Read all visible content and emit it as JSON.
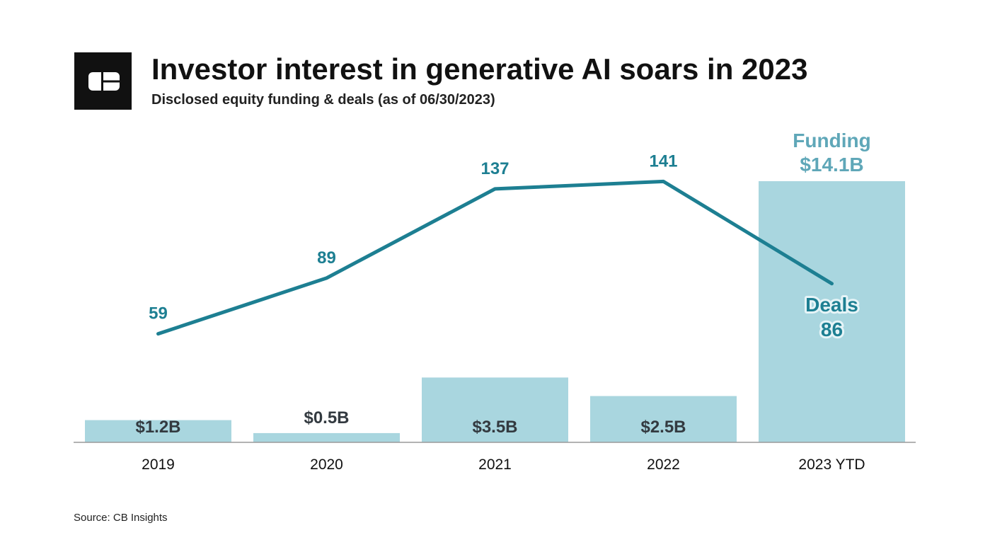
{
  "header": {
    "title": "Investor interest in generative AI soars in 2023",
    "subtitle": "Disclosed equity funding & deals (as of 06/30/2023)",
    "logo_icon": "cb-insights-logo"
  },
  "footer": {
    "source": "Source: CB Insights"
  },
  "colors": {
    "bar": "#a9d6df",
    "line": "#1d7f92",
    "funding_label": "#5fa7b8",
    "bar_label": "#333a40"
  },
  "chart_data": {
    "type": "bar",
    "categories": [
      "2019",
      "2020",
      "2021",
      "2022",
      "2023 YTD"
    ],
    "series": [
      {
        "name": "Funding",
        "type": "bar",
        "values": [
          1.2,
          0.5,
          3.5,
          2.5,
          14.1
        ],
        "labels": [
          "$1.2B",
          "$0.5B",
          "$3.5B",
          "$2.5B",
          "$14.1B"
        ]
      },
      {
        "name": "Deals",
        "type": "line",
        "values": [
          59,
          89,
          137,
          141,
          86
        ],
        "labels": [
          "59",
          "89",
          "137",
          "141",
          "86"
        ]
      }
    ],
    "title": "Investor interest in generative AI soars in 2023",
    "subtitle": "Disclosed equity funding & deals (as of 06/30/2023)",
    "xlabel": "",
    "ylabel": "",
    "grid": false,
    "legend": "none"
  }
}
